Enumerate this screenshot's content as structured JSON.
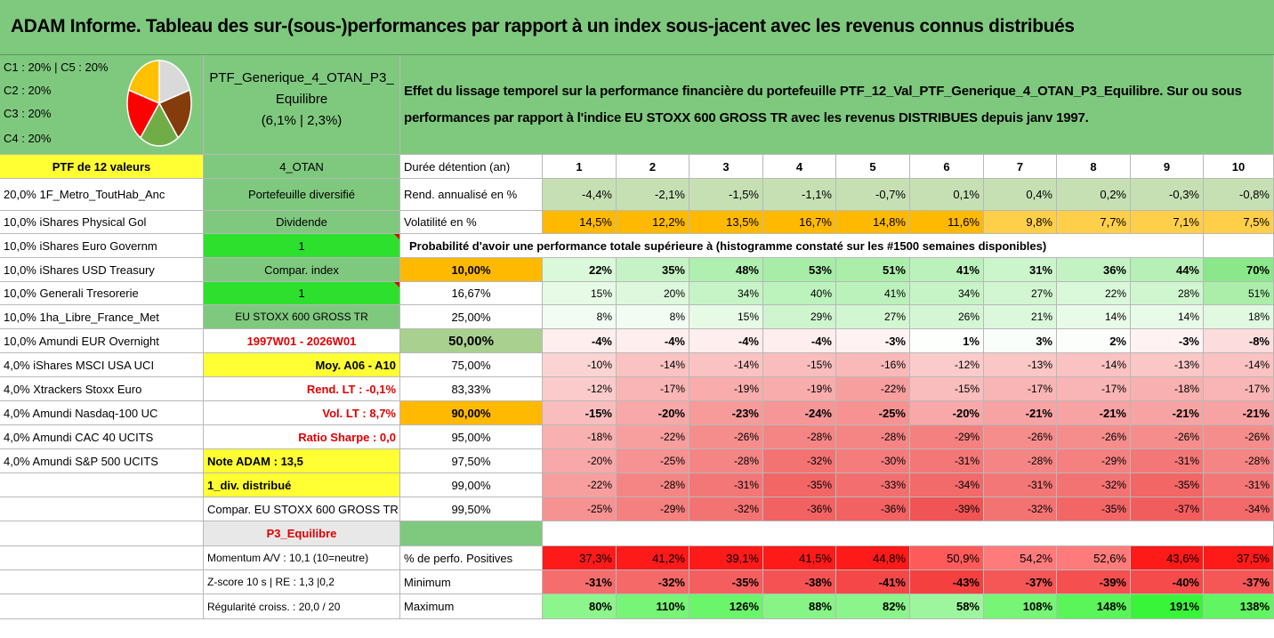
{
  "title": "ADAM Informe. Tableau des sur-(sous-)performances par rapport à un index sous-jacent avec les revenus connus distribués",
  "legend": {
    "lines": [
      "C1 : 20% | C5 : 20%",
      "C2 : 20%",
      "C3 : 20%",
      "C4 : 20%"
    ],
    "slice_colors": [
      "#d9d9d9",
      "#843c0c",
      "#70ad47",
      "#ff0000",
      "#ffc000"
    ]
  },
  "portfolio": {
    "name": "PTF_Generique_4_OTAN_P3_Equilibre",
    "stats": "(6,1% | 2,3%)",
    "count_label": "PTF de 12 valeurs",
    "code": "4_OTAN",
    "type": "Portefeuille diversifié",
    "dividend_label": "Dividende",
    "dividend_value": "1",
    "compar_label": "Compar. index",
    "compar_value": "1",
    "index_name": "EU STOXX 600 GROSS TR",
    "period": "1997W01 - 2026W01",
    "moy": "Moy. A06 - A10",
    "rend_lt": "Rend. LT : -0,1%",
    "vol_lt": "Vol. LT : 8,7%",
    "ratio_sharpe": "Ratio Sharpe : 0,0",
    "note": "Note ADAM : 13,5",
    "div_distrib": "1_div. distribué",
    "compar_full": "Compar. EU STOXX 600 GROSS TR",
    "profile": "P3_Equilibre",
    "momentum": "Momentum A/V : 10,1 (10=neutre)",
    "zscore": "Z-score 10 s | RE : 1,3 |0,2",
    "regularite": "Régularité croiss. : 20,0 / 20"
  },
  "description": "Effet du lissage temporel sur la performance financière du portefeuille PTF_12_Val_PTF_Generique_4_OTAN_P3_Equilibre. Sur ou sous performances par rapport à l'indice EU STOXX 600 GROSS TR avec les revenus DISTRIBUES depuis janv 1997.",
  "holdings": [
    "20,0% 1F_Metro_ToutHab_Anc",
    "10,0% iShares Physical Gol",
    "10,0% iShares Euro Governm",
    "10,0% iShares USD Treasury",
    "10,0% Generali Tresorerie",
    "10,0% 1ha_Libre_France_Met",
    "10,0% Amundi EUR Overnight",
    "4,0% iShares MSCI USA UCI",
    "4,0% Xtrackers Stoxx Euro",
    "4,0% Amundi Nasdaq-100 UC",
    "4,0% Amundi CAC 40 UCITS",
    "4,0% Amundi S&P 500 UCITS"
  ],
  "table": {
    "duration_label": "Durée détention (an)",
    "years": [
      "1",
      "2",
      "3",
      "4",
      "5",
      "6",
      "7",
      "8",
      "9",
      "10"
    ],
    "rend_label": "Rend. annualisé en %",
    "rend": [
      "-4,4%",
      "-2,1%",
      "-1,5%",
      "-1,1%",
      "-0,7%",
      "0,1%",
      "0,4%",
      "0,2%",
      "-0,3%",
      "-0,8%"
    ],
    "vol_label": "Volatilité en %",
    "vol": [
      "14,5%",
      "12,2%",
      "13,5%",
      "16,7%",
      "14,8%",
      "11,6%",
      "9,8%",
      "7,7%",
      "7,1%",
      "7,5%"
    ],
    "prob_label": "Probabilité d'avoir une performance totale supérieure à (histogramme constaté sur les #1500 semaines disponibles)",
    "quantiles": [
      {
        "p": "10,00%",
        "v": [
          "22%",
          "35%",
          "48%",
          "53%",
          "51%",
          "41%",
          "31%",
          "36%",
          "44%",
          "70%"
        ]
      },
      {
        "p": "16,67%",
        "v": [
          "15%",
          "20%",
          "34%",
          "40%",
          "41%",
          "34%",
          "27%",
          "22%",
          "28%",
          "51%"
        ]
      },
      {
        "p": "25,00%",
        "v": [
          "8%",
          "8%",
          "15%",
          "29%",
          "27%",
          "26%",
          "21%",
          "14%",
          "14%",
          "18%"
        ]
      },
      {
        "p": "50,00%",
        "v": [
          "-4%",
          "-4%",
          "-4%",
          "-4%",
          "-3%",
          "1%",
          "3%",
          "2%",
          "-3%",
          "-8%"
        ]
      },
      {
        "p": "75,00%",
        "v": [
          "-10%",
          "-14%",
          "-14%",
          "-15%",
          "-16%",
          "-12%",
          "-13%",
          "-14%",
          "-13%",
          "-14%"
        ]
      },
      {
        "p": "83,33%",
        "v": [
          "-12%",
          "-17%",
          "-19%",
          "-19%",
          "-22%",
          "-15%",
          "-17%",
          "-17%",
          "-18%",
          "-17%"
        ]
      },
      {
        "p": "90,00%",
        "v": [
          "-15%",
          "-20%",
          "-23%",
          "-24%",
          "-25%",
          "-20%",
          "-21%",
          "-21%",
          "-21%",
          "-21%"
        ]
      },
      {
        "p": "95,00%",
        "v": [
          "-18%",
          "-22%",
          "-26%",
          "-28%",
          "-28%",
          "-29%",
          "-26%",
          "-26%",
          "-26%",
          "-26%"
        ]
      },
      {
        "p": "97,50%",
        "v": [
          "-20%",
          "-25%",
          "-28%",
          "-32%",
          "-30%",
          "-31%",
          "-28%",
          "-29%",
          "-31%",
          "-28%"
        ]
      },
      {
        "p": "99,00%",
        "v": [
          "-22%",
          "-28%",
          "-31%",
          "-35%",
          "-33%",
          "-34%",
          "-31%",
          "-32%",
          "-35%",
          "-31%"
        ]
      },
      {
        "p": "99,50%",
        "v": [
          "-25%",
          "-29%",
          "-32%",
          "-36%",
          "-36%",
          "-39%",
          "-32%",
          "-35%",
          "-37%",
          "-34%"
        ]
      }
    ],
    "pos_label": "% de perfo. Positives",
    "pos": [
      "37,3%",
      "41,2%",
      "39,1%",
      "41,5%",
      "44,8%",
      "50,9%",
      "54,2%",
      "52,6%",
      "43,6%",
      "37,5%"
    ],
    "min_label": "Minimum",
    "min": [
      "-31%",
      "-32%",
      "-35%",
      "-38%",
      "-41%",
      "-43%",
      "-37%",
      "-39%",
      "-40%",
      "-37%"
    ],
    "max_label": "Maximum",
    "max": [
      "80%",
      "110%",
      "126%",
      "88%",
      "82%",
      "58%",
      "108%",
      "148%",
      "191%",
      "138%"
    ]
  }
}
